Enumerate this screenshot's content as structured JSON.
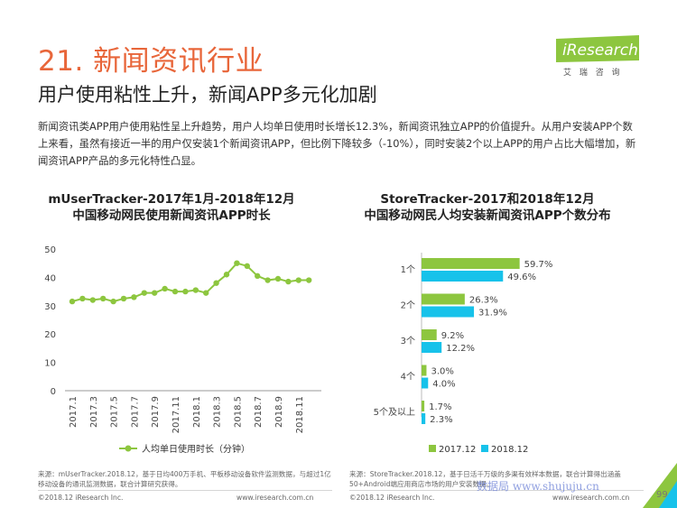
{
  "header": {
    "title": "21. 新闻资讯行业",
    "subtitle": "用户使用粘性上升，新闻APP多元化加剧",
    "summary": "新闻资讯类APP用户使用粘性呈上升趋势，用户人均单日使用时长增长12.3%，新闻资讯独立APP的价值提升。从用户安装APP个数上来看，虽然有接近一半的用户仅安装1个新闻资讯APP，但比例下降较多（-10%），同时安装2个以上APP的用户占比大幅增加，新闻资讯APP产品的多元化特性凸显。"
  },
  "logo": {
    "brand": "iResearch",
    "tagline": "艾 瑞 咨 询"
  },
  "colors": {
    "title": "#e8663a",
    "green": "#8dc63f",
    "cyan": "#17c2ea",
    "logo": "#8dc63f"
  },
  "chart_data": [
    {
      "type": "line",
      "title_line1": "mUserTracker-2017年1月-2018年12月",
      "title_line2": "中国移动网民使用新闻资讯APP时长",
      "x": [
        "2017.1",
        "2017.2",
        "2017.3",
        "2017.4",
        "2017.5",
        "2017.6",
        "2017.7",
        "2017.8",
        "2017.9",
        "2017.10",
        "2017.11",
        "2017.12",
        "2018.1",
        "2018.2",
        "2018.3",
        "2018.4",
        "2018.5",
        "2018.6",
        "2018.7",
        "2018.8",
        "2018.9",
        "2018.10",
        "2018.11",
        "2018.12"
      ],
      "xtick_labels": [
        "2017.1",
        "2017.3",
        "2017.5",
        "2017.7",
        "2017.9",
        "2017.11",
        "2018.1",
        "2018.3",
        "2018.5",
        "2018.7",
        "2018.9",
        "2018.11"
      ],
      "series": [
        {
          "name": "人均单日使用时长（分钟）",
          "values": [
            31.5,
            32.5,
            32,
            32.5,
            31.5,
            32.5,
            33,
            34.5,
            34.5,
            36,
            35,
            35,
            35.5,
            34.5,
            38,
            41,
            45,
            44,
            40.5,
            39,
            39.5,
            38.5,
            39,
            39
          ]
        }
      ],
      "ylim": [
        0,
        50
      ],
      "yticks": [
        0,
        10,
        20,
        30,
        40,
        50
      ],
      "legend_position": "bottom"
    },
    {
      "type": "bar",
      "orientation": "horizontal",
      "title_line1": "StoreTracker-2017和2018年12月",
      "title_line2": "中国移动网民人均安装新闻资讯APP个数分布",
      "categories": [
        "1个",
        "2个",
        "3个",
        "4个",
        "5个及以上"
      ],
      "series": [
        {
          "name": "2017.12",
          "values": [
            59.7,
            26.3,
            9.2,
            3.0,
            1.7
          ],
          "labels": [
            "59.7%",
            "26.3%",
            "9.2%",
            "3.0%",
            "1.7%"
          ]
        },
        {
          "name": "2018.12",
          "values": [
            49.6,
            31.9,
            12.2,
            4.0,
            2.3
          ],
          "labels": [
            "49.6%",
            "31.9%",
            "12.2%",
            "4.0%",
            "2.3%"
          ]
        }
      ],
      "xlim": [
        0,
        100
      ],
      "legend_position": "bottom"
    }
  ],
  "footer": {
    "left_source": "来源：mUserTracker.2018.12，基于日均400万手机、平板移动设备软件监测数据，与超过1亿移动设备的通讯监测数据，联合计算研究获得。",
    "right_source": "来源：StoreTracker.2018.12，基于日活千万级的多渠有效样本数据，联合计算得出涵盖50+Android端应用商店市场的用户安装数据。",
    "copyright": "©2018.12 iResearch Inc.",
    "website": "www.iresearch.com.cn",
    "watermark": "数据局 www.shujuju.cn",
    "page": "99"
  }
}
